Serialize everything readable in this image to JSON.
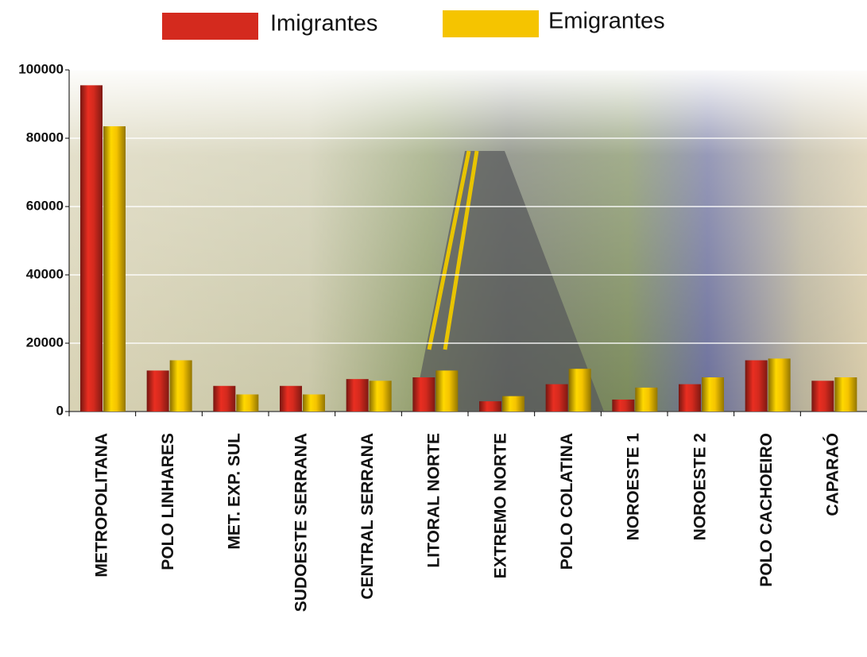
{
  "chart_data": {
    "type": "bar",
    "categories": [
      "METROPOLITANA",
      "POLO LINHARES",
      "MET. EXP. SUL",
      "SUDOESTE SERRANA",
      "CENTRAL SERRANA",
      "LITORAL NORTE",
      "EXTREMO NORTE",
      "POLO COLATINA",
      "NOROESTE 1",
      "NOROESTE 2",
      "POLO CACHOEIRO",
      "CAPARAÓ"
    ],
    "series": [
      {
        "name": "Imigrantes",
        "color": "#d42a1e",
        "values": [
          95500,
          12000,
          7500,
          7500,
          9500,
          10000,
          3000,
          8000,
          3500,
          8000,
          15000,
          9000
        ]
      },
      {
        "name": "Emigrantes",
        "color": "#f5c400",
        "values": [
          83500,
          15000,
          5000,
          5000,
          9000,
          12000,
          4500,
          12500,
          7000,
          10000,
          15500,
          10000
        ]
      }
    ],
    "ylim": [
      0,
      100000
    ],
    "yticks": [
      0,
      20000,
      40000,
      60000,
      80000,
      100000
    ],
    "grid": true
  }
}
